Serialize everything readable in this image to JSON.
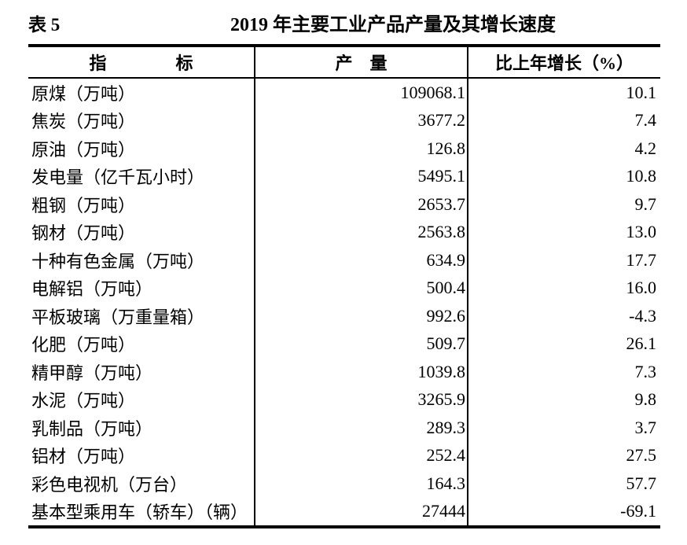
{
  "header": {
    "table_label": "表 5",
    "title": "2019 年主要工业产品产量及其增长速度"
  },
  "table": {
    "columns": {
      "indicator": "指　　　　标",
      "output": "产　量",
      "growth": "比上年增长（%）"
    },
    "rows": [
      {
        "indicator": "原煤（万吨）",
        "output": "109068.1",
        "growth": "10.1"
      },
      {
        "indicator": "焦炭（万吨）",
        "output": "3677.2",
        "growth": "7.4"
      },
      {
        "indicator": "原油（万吨）",
        "output": "126.8",
        "growth": "4.2"
      },
      {
        "indicator": "发电量（亿千瓦小时）",
        "output": "5495.1",
        "growth": "10.8"
      },
      {
        "indicator": "粗钢（万吨）",
        "output": "2653.7",
        "growth": "9.7"
      },
      {
        "indicator": "钢材（万吨）",
        "output": "2563.8",
        "growth": "13.0"
      },
      {
        "indicator": "十种有色金属（万吨）",
        "output": "634.9",
        "growth": "17.7"
      },
      {
        "indicator": "电解铝（万吨）",
        "output": "500.4",
        "growth": "16.0"
      },
      {
        "indicator": "平板玻璃（万重量箱）",
        "output": "992.6",
        "growth": "-4.3"
      },
      {
        "indicator": "化肥（万吨）",
        "output": "509.7",
        "growth": "26.1"
      },
      {
        "indicator": "精甲醇（万吨）",
        "output": "1039.8",
        "growth": "7.3"
      },
      {
        "indicator": "水泥（万吨）",
        "output": "3265.9",
        "growth": "9.8"
      },
      {
        "indicator": "乳制品（万吨）",
        "output": "289.3",
        "growth": "3.7"
      },
      {
        "indicator": "铝材（万吨）",
        "output": "252.4",
        "growth": "27.5"
      },
      {
        "indicator": "彩色电视机（万台）",
        "output": "164.3",
        "growth": "57.7"
      },
      {
        "indicator": "基本型乘用车（轿车）（辆）",
        "output": "27444",
        "growth": "-69.1"
      }
    ]
  },
  "colors": {
    "text": "#000000",
    "background": "#ffffff",
    "border": "#000000"
  }
}
